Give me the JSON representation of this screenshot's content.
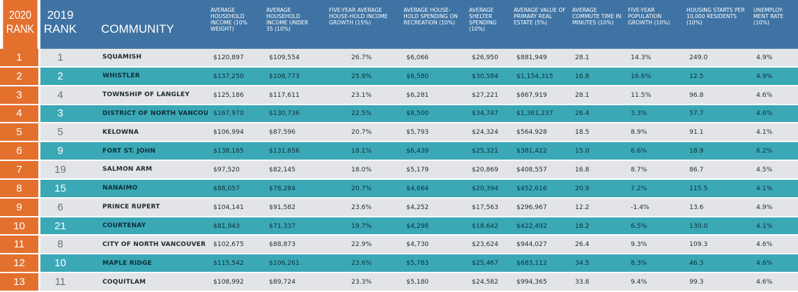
{
  "header": {
    "rank_2020": "2020 RANK",
    "rank_2019": "2019 RANK",
    "community": "COMMUNITY",
    "columns": [
      "AVERAGE HOUSEHOLD INCOME (10% WEIGHT)",
      "AVERAGE HOUSEHOLD INCOME UNDER 35 (10%)",
      "FIVE-YEAR AVERAGE HOUSE-HOLD INCOME GROWTH (15%)",
      "AVERAGE HOUSE-HOLD SPENDING ON RECREATION (10%)",
      "AVERAGE SHELTER SPENDING (10%)",
      "AVERAGE VALUE OF PRIMARY REAL ESTATE (5%)",
      "AVERAGE COMMUTE TIME IN MINUTES (10%)",
      "FIVE-YEAR POPULATION GROWTH (10%)",
      "HOUSING STARTS PER 10,000 RESIDENTS (10%)",
      "UNEMPLOY-MENT RATE (10%)"
    ]
  },
  "rows": [
    {
      "r2020": "1",
      "r2019": "1",
      "community": "SQUAMISH",
      "values": [
        "$120,897",
        "$109,554",
        "26.7%",
        "$6,066",
        "$26,950",
        "$881,949",
        "28.1",
        "14.3%",
        "249.0",
        "4.9%"
      ]
    },
    {
      "r2020": "2",
      "r2019": "2",
      "community": "WHISTLER",
      "values": [
        "$137,250",
        "$108,773",
        "25.9%",
        "$6,580",
        "$30,584",
        "$1,154,315",
        "16.8",
        "16.6%",
        "12.5",
        "4.9%"
      ]
    },
    {
      "r2020": "3",
      "r2019": "4",
      "community": "TOWNSHIP OF LANGLEY",
      "values": [
        "$125,186",
        "$117,611",
        "23.1%",
        "$6,281",
        "$27,221",
        "$867,919",
        "28.1",
        "11.5%",
        "96.8",
        "4.6%"
      ]
    },
    {
      "r2020": "4",
      "r2019": "3",
      "community": "DISTRICT OF NORTH VANCOUVER",
      "values": [
        "$167,970",
        "$130,736",
        "22.5%",
        "$8,500",
        "$34,747",
        "$1,361,237",
        "26.4",
        "3.3%",
        "57.7",
        "4.6%"
      ]
    },
    {
      "r2020": "5",
      "r2019": "5",
      "community": "KELOWNA",
      "values": [
        "$106,994",
        "$87,596",
        "20.7%",
        "$5,793",
        "$24,324",
        "$564,928",
        "18.5",
        "8.9%",
        "91.1",
        "4.1%"
      ]
    },
    {
      "r2020": "6",
      "r2019": "9",
      "community": "FORT ST. JOHN",
      "values": [
        "$138,185",
        "$131,656",
        "18.1%",
        "$6,439",
        "$25,321",
        "$381,422",
        "15.0",
        "6.6%",
        "18.9",
        "6.2%"
      ]
    },
    {
      "r2020": "7",
      "r2019": "19",
      "community": "SALMON ARM",
      "values": [
        "$97,520",
        "$82,145",
        "18.0%",
        "$5,179",
        "$20,869",
        "$408,557",
        "16.8",
        "8.7%",
        "86.7",
        "4.5%"
      ]
    },
    {
      "r2020": "8",
      "r2019": "15",
      "community": "NANAIMO",
      "values": [
        "$88,057",
        "$78,284",
        "20.7%",
        "$4,664",
        "$20,394",
        "$452,616",
        "20.9",
        "7.2%",
        "115.5",
        "4.1%"
      ]
    },
    {
      "r2020": "9",
      "r2019": "6",
      "community": "PRINCE RUPERT",
      "values": [
        "$104,141",
        "$91,582",
        "23.6%",
        "$4,252",
        "$17,563",
        "$296,967",
        "12.2",
        "-1.4%",
        "13.6",
        "4.9%"
      ]
    },
    {
      "r2020": "10",
      "r2019": "21",
      "community": "COURTENAY",
      "values": [
        "$81,943",
        "$71,337",
        "19.7%",
        "$4,298",
        "$18,642",
        "$422,492",
        "18.2",
        "6.5%",
        "130.0",
        "4.1%"
      ]
    },
    {
      "r2020": "11",
      "r2019": "8",
      "community": "CITY OF NORTH VANCOUVER",
      "values": [
        "$102,675",
        "$88,873",
        "22.9%",
        "$4,730",
        "$23,624",
        "$944,027",
        "26.4",
        "9.3%",
        "109.3",
        "4.6%"
      ]
    },
    {
      "r2020": "12",
      "r2019": "10",
      "community": "MAPLE RIDGE",
      "values": [
        "$115,542",
        "$106,261",
        "23.6%",
        "$5,783",
        "$25,467",
        "$683,112",
        "34.5",
        "8.3%",
        "46.3",
        "4.6%"
      ]
    },
    {
      "r2020": "13",
      "r2019": "11",
      "community": "COQUITLAM",
      "values": [
        "$108,992",
        "$89,724",
        "23.3%",
        "$5,180",
        "$24,582",
        "$994,365",
        "33.8",
        "9.4%",
        "99.3",
        "4.6%"
      ]
    }
  ],
  "colors": {
    "header_blue": "#3f73a3",
    "rank_orange": "#e4702e",
    "row_gray": "#e2e4e7",
    "row_teal": "#3ba8b6"
  }
}
